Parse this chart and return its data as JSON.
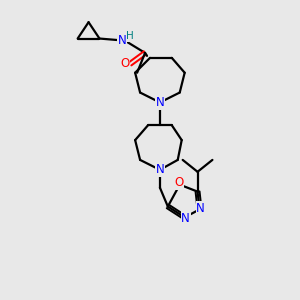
{
  "bg_color": "#e8e8e8",
  "bond_color": "#000000",
  "N_color": "#0000ff",
  "O_color": "#ff0000",
  "H_color": "#008080",
  "C_color": "#000000",
  "lw": 1.6,
  "figsize": [
    3.0,
    3.0
  ],
  "dpi": 100,
  "xlim": [
    0,
    300
  ],
  "ylim": [
    0,
    300
  ]
}
